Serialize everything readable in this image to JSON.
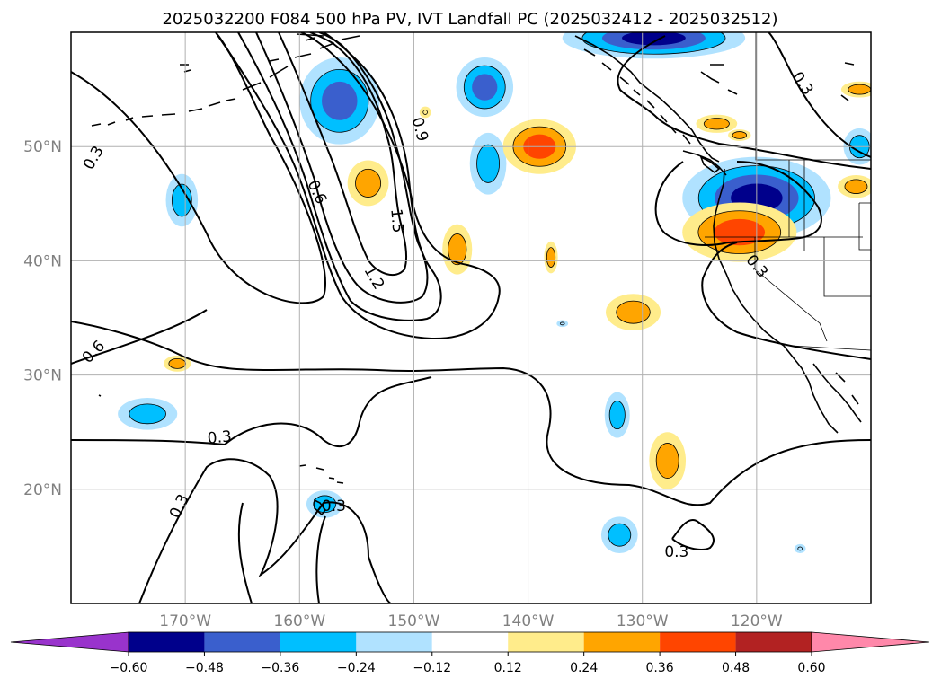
{
  "title": "2025032200 F084 500 hPa PV, IVT Landfall PC (2025032412 - 2025032512)",
  "map": {
    "lon_range": [
      -180,
      -110
    ],
    "lat_range": [
      10,
      60
    ],
    "lon_ticks": [
      {
        "value": -170,
        "label": "170°W"
      },
      {
        "value": -160,
        "label": "160°W"
      },
      {
        "value": -150,
        "label": "150°W"
      },
      {
        "value": -140,
        "label": "140°W"
      },
      {
        "value": -130,
        "label": "130°W"
      },
      {
        "value": -120,
        "label": "120°W"
      }
    ],
    "lat_ticks": [
      {
        "value": 50,
        "label": "50°N"
      },
      {
        "value": 40,
        "label": "40°N"
      },
      {
        "value": 30,
        "label": "30°N"
      },
      {
        "value": 20,
        "label": "20°N"
      }
    ],
    "gridlines": true,
    "colors": {
      "grid": "#b0b0b0",
      "contour": "#000000",
      "coast": "#000000",
      "tick_label": "#808080"
    }
  },
  "contour_labels": [
    {
      "text": "0.3",
      "lon": -178,
      "lat": 49,
      "rot": -60
    },
    {
      "text": "0.6",
      "lon": -178,
      "lat": 32,
      "rot": -45
    },
    {
      "text": "0.3",
      "lon": -167,
      "lat": 24.5,
      "rot": -5
    },
    {
      "text": "0.3",
      "lon": -170.5,
      "lat": 18.5,
      "rot": -65
    },
    {
      "text": "0.3",
      "lon": -157,
      "lat": 18.5,
      "rot": 0
    },
    {
      "text": "0.6",
      "lon": -158.5,
      "lat": 46,
      "rot": 65
    },
    {
      "text": "0.9",
      "lon": -149.5,
      "lat": 51.5,
      "rot": 75
    },
    {
      "text": "1.5",
      "lon": -151.5,
      "lat": 43.5,
      "rot": 85
    },
    {
      "text": "1.2",
      "lon": -153.5,
      "lat": 38.5,
      "rot": 60
    },
    {
      "text": "0.3",
      "lon": -127,
      "lat": 14.5,
      "rot": 0
    },
    {
      "text": "0.3",
      "lon": -116,
      "lat": 55.5,
      "rot": 55
    },
    {
      "text": "0.3",
      "lon": -120,
      "lat": 39.5,
      "rot": 50
    }
  ],
  "colorbar": {
    "ticks": [
      "−0.60",
      "−0.48",
      "−0.36",
      "−0.24",
      "−0.12",
      "0.12",
      "0.24",
      "0.36",
      "0.48",
      "0.60"
    ],
    "under_color": "#9933cc",
    "over_color": "#ff88aa",
    "colors": [
      "#00008b",
      "#3a5fcd",
      "#00bfff",
      "#b0e2ff",
      "#ffffff",
      "#ffec8b",
      "#ffa500",
      "#ff4500",
      "#b22222"
    ]
  },
  "shading": [
    {
      "lon": -156.5,
      "lat": 54.0,
      "rx": 3.5,
      "ry": 3.8,
      "levels": [
        "#b0e2ff",
        "#00bfff",
        "#3a5fcd"
      ]
    },
    {
      "lon": -137.0,
      "lat": 34.5,
      "rx": 0.5,
      "ry": 0.3,
      "levels": [
        "#b0e2ff"
      ]
    },
    {
      "lon": -143.8,
      "lat": 55.2,
      "rx": 2.5,
      "ry": 2.6,
      "levels": [
        "#b0e2ff",
        "#00bfff",
        "#3a5fcd"
      ]
    },
    {
      "lon": -170.3,
      "lat": 45.3,
      "rx": 1.4,
      "ry": 2.3,
      "levels": [
        "#b0e2ff",
        "#00bfff"
      ]
    },
    {
      "lon": -143.5,
      "lat": 48.5,
      "rx": 1.6,
      "ry": 2.7,
      "levels": [
        "#b0e2ff",
        "#00bfff"
      ]
    },
    {
      "lon": -173.3,
      "lat": 26.6,
      "rx": 2.6,
      "ry": 1.4,
      "levels": [
        "#b0e2ff",
        "#00bfff"
      ]
    },
    {
      "lon": -157.8,
      "lat": 18.7,
      "rx": 1.6,
      "ry": 1.2,
      "levels": [
        "#b0e2ff",
        "#00bfff"
      ]
    },
    {
      "lon": -132.2,
      "lat": 26.5,
      "rx": 1.1,
      "ry": 2.0,
      "levels": [
        "#b0e2ff",
        "#00bfff"
      ]
    },
    {
      "lon": -132.0,
      "lat": 16.0,
      "rx": 1.6,
      "ry": 1.6,
      "levels": [
        "#b0e2ff",
        "#00bfff"
      ]
    },
    {
      "lon": -129.0,
      "lat": 59.5,
      "rx": 8.0,
      "ry": 1.8,
      "levels": [
        "#b0e2ff",
        "#00bfff",
        "#3a5fcd",
        "#00008b"
      ]
    },
    {
      "lon": -120.0,
      "lat": 45.5,
      "rx": 6.5,
      "ry": 3.6,
      "levels": [
        "#b0e2ff",
        "#00bfff",
        "#3a5fcd",
        "#00008b"
      ]
    },
    {
      "lon": -111.0,
      "lat": 50.0,
      "rx": 1.4,
      "ry": 1.6,
      "levels": [
        "#b0e2ff",
        "#00bfff"
      ]
    },
    {
      "lon": -116.2,
      "lat": 14.8,
      "rx": 0.5,
      "ry": 0.4,
      "levels": [
        "#b0e2ff"
      ]
    },
    {
      "lon": -154.0,
      "lat": 46.8,
      "rx": 1.8,
      "ry": 2.0,
      "levels": [
        "#ffec8b",
        "#ffa500"
      ]
    },
    {
      "lon": -139.0,
      "lat": 50.0,
      "rx": 3.2,
      "ry": 2.4,
      "levels": [
        "#ffec8b",
        "#ffa500",
        "#ff4500"
      ]
    },
    {
      "lon": -146.2,
      "lat": 41.0,
      "rx": 1.3,
      "ry": 2.2,
      "levels": [
        "#ffec8b",
        "#ffa500"
      ]
    },
    {
      "lon": -138.0,
      "lat": 40.3,
      "rx": 0.6,
      "ry": 1.4,
      "levels": [
        "#ffec8b",
        "#ffa500"
      ]
    },
    {
      "lon": -130.8,
      "lat": 35.5,
      "rx": 2.4,
      "ry": 1.6,
      "levels": [
        "#ffec8b",
        "#ffa500"
      ]
    },
    {
      "lon": -170.7,
      "lat": 31.0,
      "rx": 1.2,
      "ry": 0.7,
      "levels": [
        "#ffec8b",
        "#ffa500"
      ]
    },
    {
      "lon": -127.8,
      "lat": 22.5,
      "rx": 1.6,
      "ry": 2.5,
      "levels": [
        "#ffec8b",
        "#ffa500"
      ]
    },
    {
      "lon": -121.5,
      "lat": 42.5,
      "rx": 5.0,
      "ry": 2.6,
      "levels": [
        "#ffec8b",
        "#ffa500",
        "#ff4500"
      ]
    },
    {
      "lon": -123.5,
      "lat": 52.0,
      "rx": 1.8,
      "ry": 0.8,
      "levels": [
        "#ffec8b",
        "#ffa500"
      ]
    },
    {
      "lon": -111.3,
      "lat": 46.5,
      "rx": 1.6,
      "ry": 1.0,
      "levels": [
        "#ffec8b",
        "#ffa500"
      ]
    },
    {
      "lon": -111.0,
      "lat": 55.0,
      "rx": 1.6,
      "ry": 0.7,
      "levels": [
        "#ffec8b",
        "#ffa500"
      ]
    },
    {
      "lon": -121.5,
      "lat": 51.0,
      "rx": 1.0,
      "ry": 0.5,
      "levels": [
        "#ffec8b",
        "#ffa500"
      ]
    },
    {
      "lon": -149.0,
      "lat": 53.0,
      "rx": 0.5,
      "ry": 0.5,
      "levels": [
        "#ffec8b"
      ]
    }
  ]
}
